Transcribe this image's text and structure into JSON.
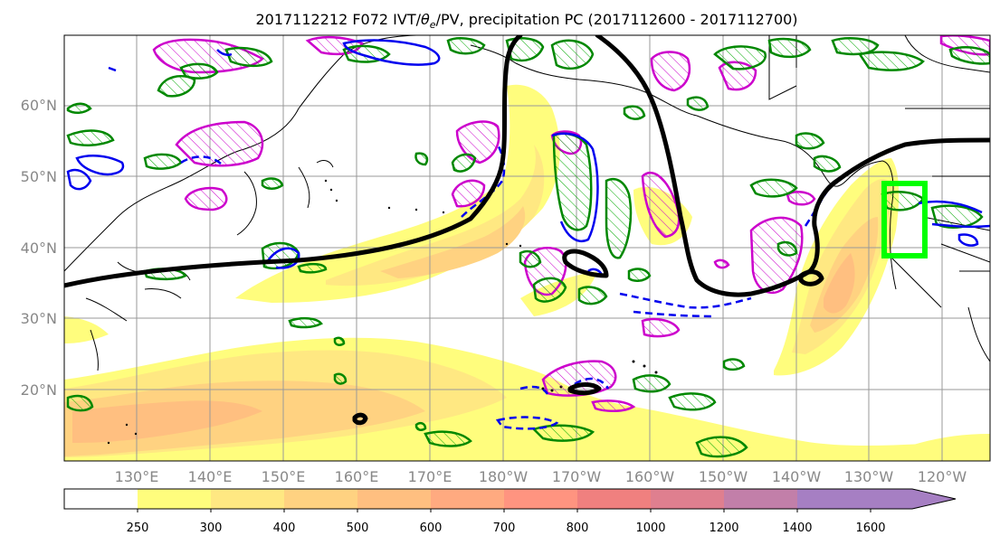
{
  "title_main": "2017112212 F072 IVT/",
  "title_theta": "θ",
  "title_sub": "e",
  "title_rest": "/PV, precipitation PC (2017112600 - 2017112700)",
  "lat_labels": [
    "60°N",
    "50°N",
    "40°N",
    "30°N",
    "20°N"
  ],
  "lon_labels": [
    "130°E",
    "140°E",
    "150°E",
    "160°E",
    "170°E",
    "180°W",
    "170°W",
    "160°W",
    "150°W",
    "140°W",
    "130°W",
    "120°W"
  ],
  "colorbar": {
    "tick_labels": [
      "250",
      "300",
      "400",
      "500",
      "600",
      "700",
      "800",
      "1000",
      "1200",
      "1400",
      "1600"
    ],
    "colors": [
      "#ffffff",
      "#fffd7d",
      "#ffe882",
      "#ffd281",
      "#ffbf80",
      "#ffaa80",
      "#ff9480",
      "#f0807f",
      "#df7f8f",
      "#c27fa9",
      "#a67fc3",
      "#a67fc3"
    ]
  },
  "region_box_color": "#00ff00",
  "contour_colors": {
    "pv_line": "#000000",
    "theta_e": "#0000ff",
    "vertical_motion": "#00aa00",
    "pv_anomaly": "#cc00cc"
  }
}
